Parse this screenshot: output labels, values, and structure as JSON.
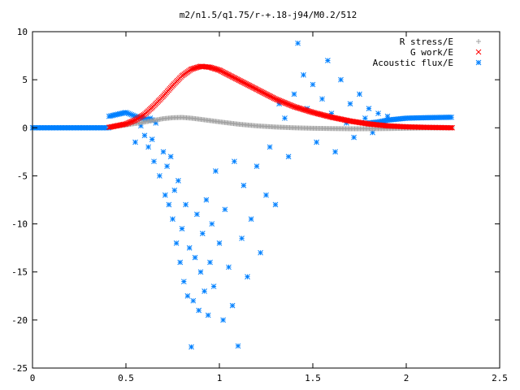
{
  "chart_data": {
    "type": "scatter",
    "title": "m2/n1.5/q1.75/r-+.18-j94/M0.2/512",
    "xlabel": "",
    "ylabel": "",
    "xlim": [
      0,
      2.5
    ],
    "ylim": [
      -25,
      10
    ],
    "x_ticks": [
      0,
      0.5,
      1,
      1.5,
      2,
      2.5
    ],
    "x_tick_labels": [
      "0",
      "0.5",
      "1",
      "1.5",
      "2",
      "2.5"
    ],
    "y_ticks": [
      -25,
      -20,
      -15,
      -10,
      -5,
      0,
      5,
      10
    ],
    "y_tick_labels": [
      "-25",
      "-20",
      "-15",
      "-10",
      "-5",
      "0",
      "5",
      "10"
    ],
    "grid": false,
    "legend_position": "top-right",
    "series": [
      {
        "name": "R stress/E",
        "marker": "plus",
        "color": "#a0a0a0",
        "x_range": [
          0.41,
          2.25
        ],
        "points": [
          [
            0.41,
            0.05
          ],
          [
            0.5,
            0.3
          ],
          [
            0.6,
            0.6
          ],
          [
            0.7,
            0.95
          ],
          [
            0.75,
            1.05
          ],
          [
            0.8,
            1.08
          ],
          [
            0.85,
            1.0
          ],
          [
            0.9,
            0.88
          ],
          [
            1.0,
            0.62
          ],
          [
            1.1,
            0.38
          ],
          [
            1.2,
            0.2
          ],
          [
            1.3,
            0.08
          ],
          [
            1.4,
            0.0
          ],
          [
            1.5,
            -0.05
          ],
          [
            1.6,
            -0.08
          ],
          [
            1.7,
            -0.1
          ],
          [
            1.8,
            -0.1
          ],
          [
            1.9,
            -0.08
          ],
          [
            2.0,
            -0.05
          ],
          [
            2.1,
            -0.02
          ],
          [
            2.25,
            0.0
          ]
        ]
      },
      {
        "name": "G work/E",
        "marker": "cross",
        "color": "#ff0000",
        "x_range": [
          0.41,
          2.25
        ],
        "points": [
          [
            0.41,
            0.05
          ],
          [
            0.5,
            0.4
          ],
          [
            0.55,
            0.8
          ],
          [
            0.6,
            1.4
          ],
          [
            0.65,
            2.3
          ],
          [
            0.7,
            3.3
          ],
          [
            0.75,
            4.4
          ],
          [
            0.8,
            5.4
          ],
          [
            0.85,
            6.1
          ],
          [
            0.9,
            6.4
          ],
          [
            0.95,
            6.3
          ],
          [
            1.0,
            6.0
          ],
          [
            1.05,
            5.5
          ],
          [
            1.1,
            5.0
          ],
          [
            1.15,
            4.5
          ],
          [
            1.2,
            4.0
          ],
          [
            1.3,
            3.0
          ],
          [
            1.4,
            2.2
          ],
          [
            1.5,
            1.6
          ],
          [
            1.6,
            1.1
          ],
          [
            1.7,
            0.7
          ],
          [
            1.8,
            0.4
          ],
          [
            1.9,
            0.2
          ],
          [
            2.0,
            0.1
          ],
          [
            2.1,
            0.05
          ],
          [
            2.25,
            0.0
          ]
        ]
      },
      {
        "name": "Acoustic flux/E",
        "marker": "star",
        "color": "#0080ff",
        "flat_segment": {
          "x_range": [
            0.0,
            0.41
          ],
          "y": 0.0
        },
        "band": [
          [
            0.41,
            1.2
          ],
          [
            0.5,
            1.6
          ],
          [
            0.55,
            1.2
          ],
          [
            0.6,
            0.9
          ],
          [
            0.65,
            0.8
          ],
          [
            1.8,
            0.5
          ],
          [
            1.85,
            0.6
          ],
          [
            1.9,
            0.8
          ],
          [
            2.0,
            1.0
          ],
          [
            2.1,
            1.05
          ],
          [
            2.25,
            1.1
          ]
        ],
        "scatter": [
          [
            0.55,
            -1.5
          ],
          [
            0.58,
            0.2
          ],
          [
            0.6,
            -0.8
          ],
          [
            0.62,
            -2.0
          ],
          [
            0.63,
            1.0
          ],
          [
            0.64,
            -1.2
          ],
          [
            0.65,
            -3.5
          ],
          [
            0.66,
            0.5
          ],
          [
            0.68,
            -5.0
          ],
          [
            0.7,
            -2.5
          ],
          [
            0.71,
            -7.0
          ],
          [
            0.72,
            -4.0
          ],
          [
            0.73,
            -8.0
          ],
          [
            0.74,
            -3.0
          ],
          [
            0.75,
            -9.5
          ],
          [
            0.76,
            -6.5
          ],
          [
            0.77,
            -12.0
          ],
          [
            0.78,
            -5.5
          ],
          [
            0.79,
            -14.0
          ],
          [
            0.8,
            -10.5
          ],
          [
            0.81,
            -16.0
          ],
          [
            0.82,
            -8.0
          ],
          [
            0.83,
            -17.5
          ],
          [
            0.84,
            -12.5
          ],
          [
            0.85,
            -22.8
          ],
          [
            0.86,
            -18.0
          ],
          [
            0.87,
            -13.5
          ],
          [
            0.88,
            -9.0
          ],
          [
            0.89,
            -19.0
          ],
          [
            0.9,
            -15.0
          ],
          [
            0.91,
            -11.0
          ],
          [
            0.92,
            -17.0
          ],
          [
            0.93,
            -7.5
          ],
          [
            0.94,
            -19.5
          ],
          [
            0.95,
            -14.0
          ],
          [
            0.96,
            -10.0
          ],
          [
            0.97,
            -16.5
          ],
          [
            0.98,
            -4.5
          ],
          [
            1.0,
            -12.0
          ],
          [
            1.02,
            -20.0
          ],
          [
            1.03,
            -8.5
          ],
          [
            1.05,
            -14.5
          ],
          [
            1.07,
            -18.5
          ],
          [
            1.08,
            -3.5
          ],
          [
            1.1,
            -22.7
          ],
          [
            1.12,
            -11.5
          ],
          [
            1.13,
            -6.0
          ],
          [
            1.15,
            -15.5
          ],
          [
            1.17,
            -9.5
          ],
          [
            1.2,
            -4.0
          ],
          [
            1.22,
            -13.0
          ],
          [
            1.25,
            -7.0
          ],
          [
            1.27,
            -2.0
          ],
          [
            1.3,
            -8.0
          ],
          [
            1.32,
            2.5
          ],
          [
            1.35,
            1.0
          ],
          [
            1.37,
            -3.0
          ],
          [
            1.4,
            3.5
          ],
          [
            1.42,
            8.8
          ],
          [
            1.45,
            5.5
          ],
          [
            1.47,
            2.0
          ],
          [
            1.5,
            4.5
          ],
          [
            1.52,
            -1.5
          ],
          [
            1.55,
            3.0
          ],
          [
            1.58,
            7.0
          ],
          [
            1.6,
            1.5
          ],
          [
            1.62,
            -2.5
          ],
          [
            1.65,
            5.0
          ],
          [
            1.68,
            0.5
          ],
          [
            1.7,
            2.5
          ],
          [
            1.72,
            -1.0
          ],
          [
            1.75,
            3.5
          ],
          [
            1.78,
            1.0
          ],
          [
            1.8,
            2.0
          ],
          [
            1.82,
            -0.5
          ],
          [
            1.85,
            1.5
          ],
          [
            1.88,
            0.5
          ],
          [
            1.9,
            1.2
          ]
        ]
      }
    ]
  }
}
